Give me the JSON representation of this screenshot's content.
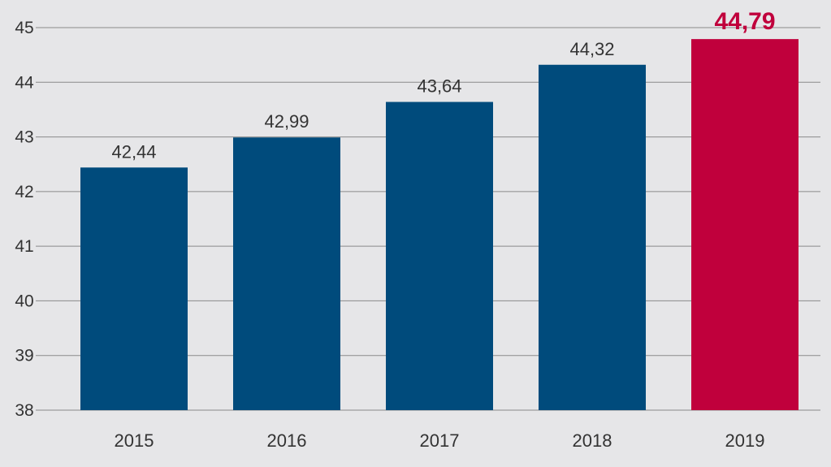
{
  "colors": {
    "background": "#e6e6e8",
    "bar": "#004b7c",
    "highlight": "#c0003c",
    "grid": "#8a8a8a"
  },
  "chart_data": {
    "type": "bar",
    "categories": [
      "2015",
      "2016",
      "2017",
      "2018",
      "2019"
    ],
    "values": [
      42.44,
      42.99,
      43.64,
      44.32,
      44.79
    ],
    "value_labels": [
      "42,44",
      "42,99",
      "43,64",
      "44,32",
      "44,79"
    ],
    "highlight_index": 4,
    "title": "",
    "xlabel": "",
    "ylabel": "",
    "ylim": [
      38,
      45
    ],
    "yticks": [
      "38",
      "39",
      "40",
      "41",
      "42",
      "43",
      "44",
      "45"
    ],
    "grid": true
  }
}
